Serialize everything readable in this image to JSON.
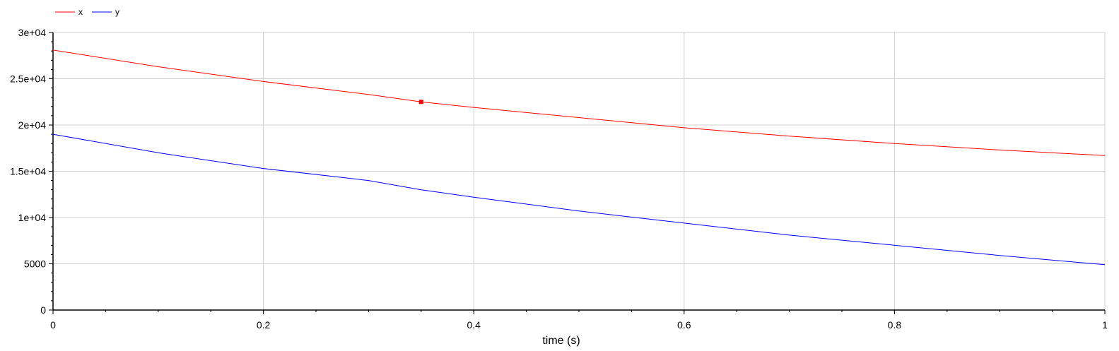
{
  "chart_data": {
    "type": "line",
    "title": "",
    "xlabel": "time (s)",
    "ylabel": "",
    "xlim": [
      0,
      1
    ],
    "ylim": [
      0,
      30000
    ],
    "grid": true,
    "legend_position": "top-left",
    "x_ticks": [
      0,
      0.2,
      0.4,
      0.6,
      0.8,
      1
    ],
    "x_tick_labels": [
      "0",
      "0.2",
      "0.4",
      "0.6",
      "0.8",
      "1"
    ],
    "y_ticks": [
      0,
      5000,
      10000,
      15000,
      20000,
      25000,
      30000
    ],
    "y_tick_labels": [
      "0",
      "5000",
      "1e+04",
      "1.5e+04",
      "2e+04",
      "2.5e+04",
      "3e+04"
    ],
    "x": [
      0,
      0.1,
      0.2,
      0.3,
      0.35,
      0.4,
      0.5,
      0.6,
      0.7,
      0.8,
      0.9,
      1.0
    ],
    "series": [
      {
        "name": "x",
        "color": "#ff0000",
        "values": [
          28100,
          26300,
          24700,
          23300,
          22500,
          21900,
          20800,
          19700,
          18800,
          18000,
          17300,
          16700
        ]
      },
      {
        "name": "y",
        "color": "#0000ff",
        "values": [
          19000,
          17000,
          15300,
          14000,
          13000,
          12200,
          10700,
          9400,
          8100,
          7000,
          5900,
          4900
        ]
      }
    ],
    "marker": {
      "series": "x",
      "x": 0.35,
      "y": 22500
    }
  }
}
